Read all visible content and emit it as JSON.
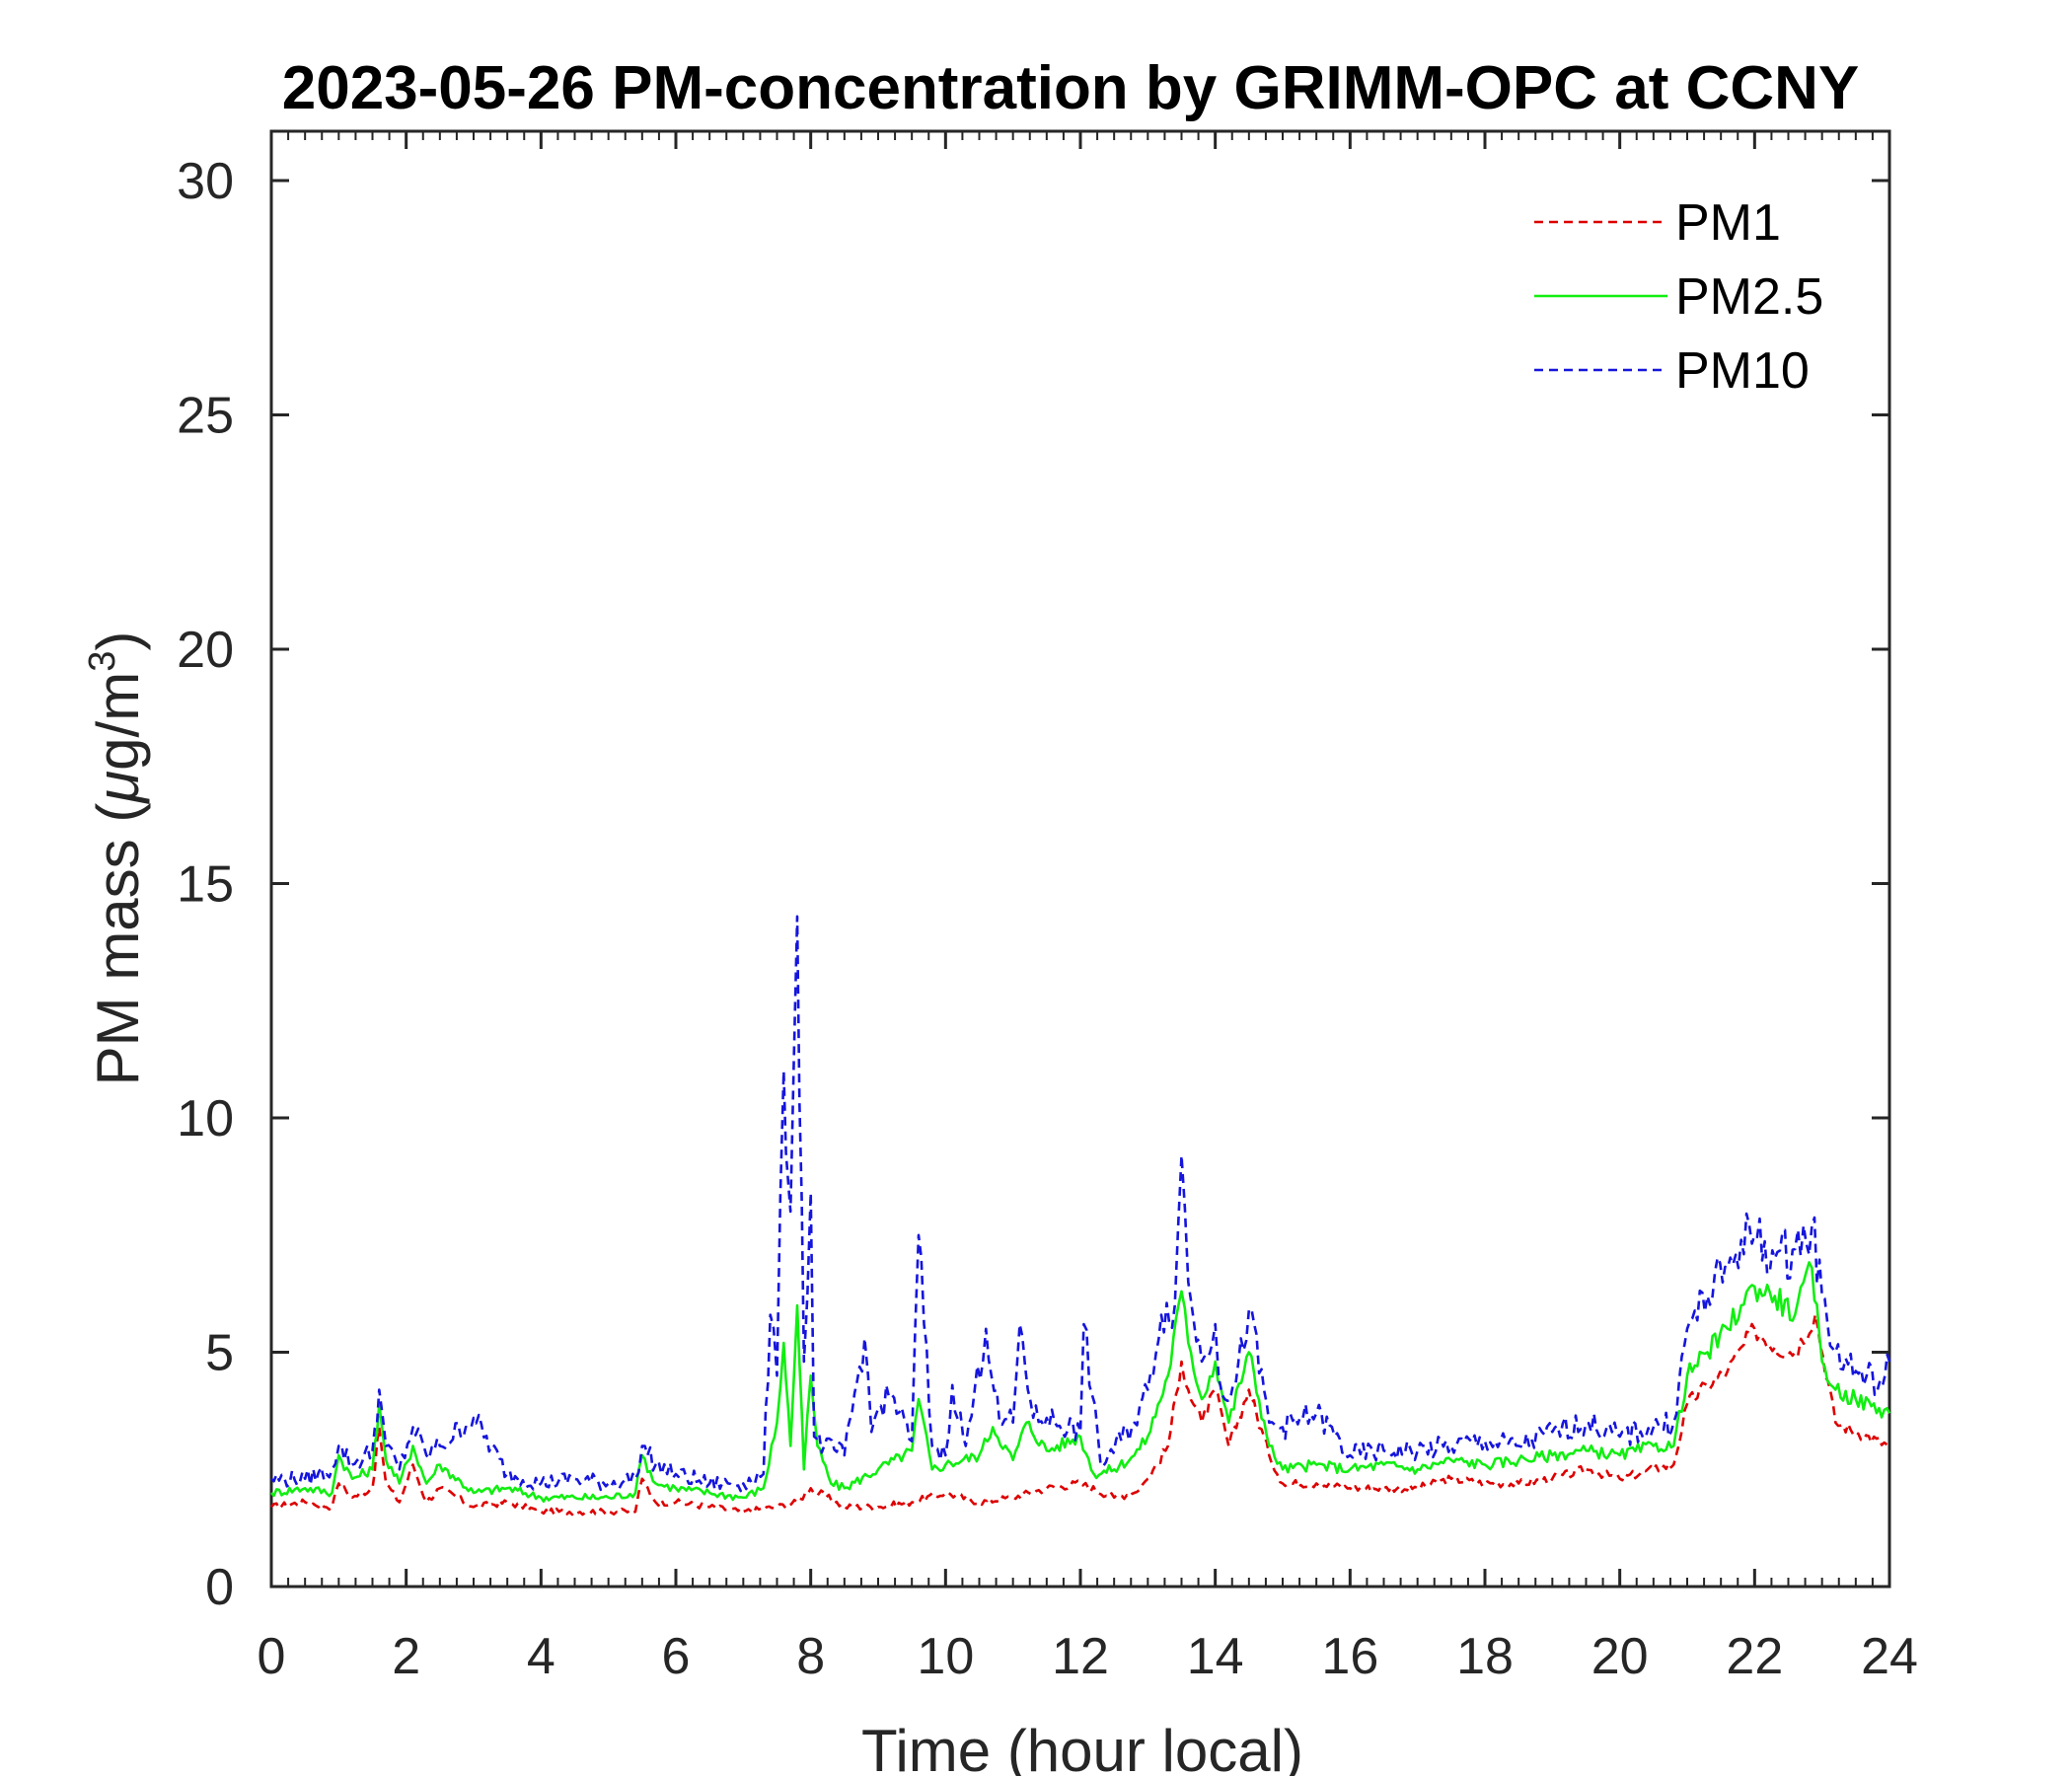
{
  "chart_data": {
    "type": "line",
    "title": "2023-05-26 PM-concentration by GRIMM-OPC at CCNY",
    "xlabel": "Time (hour local)",
    "ylabel": {
      "main": "PM mass (",
      "mu": "μ",
      "unit": "g/m",
      "sup": "3",
      "close": ")"
    },
    "xlim": [
      0,
      24
    ],
    "ylim": [
      0,
      31
    ],
    "xticks": [
      0,
      2,
      4,
      6,
      8,
      10,
      12,
      14,
      16,
      18,
      20,
      22,
      24
    ],
    "yticks": [
      0,
      5,
      10,
      15,
      20,
      25,
      30
    ],
    "grid": false,
    "legend_position": "top-right",
    "series": [
      {
        "name": "PM1",
        "color": "#dd0000",
        "style": "dashed",
        "x": [
          0,
          0.5,
          0.9,
          1.0,
          1.2,
          1.5,
          1.6,
          1.7,
          1.9,
          2.1,
          2.3,
          2.5,
          3.0,
          3.5,
          4.0,
          4.5,
          5.0,
          5.4,
          5.5,
          5.7,
          6.0,
          6.5,
          7.0,
          7.5,
          7.8,
          8.0,
          8.5,
          9.0,
          9.5,
          10.0,
          10.5,
          11.0,
          11.5,
          12.0,
          12.5,
          12.8,
          13.0,
          13.3,
          13.5,
          13.6,
          13.8,
          14.0,
          14.2,
          14.5,
          14.8,
          15.0,
          15.5,
          16.0,
          16.5,
          17.0,
          17.5,
          18.0,
          18.5,
          19.0,
          19.5,
          20.0,
          20.5,
          20.8,
          21.0,
          21.3,
          21.6,
          22.0,
          22.3,
          22.6,
          22.9,
          23.2,
          23.5,
          24.0
        ],
        "values": [
          1.7,
          1.8,
          1.7,
          2.2,
          1.9,
          2.1,
          3.4,
          2.2,
          1.8,
          2.6,
          1.8,
          2.1,
          1.7,
          1.8,
          1.6,
          1.6,
          1.6,
          1.6,
          2.3,
          1.8,
          1.8,
          1.7,
          1.6,
          1.7,
          1.8,
          2.1,
          1.7,
          1.7,
          1.8,
          2.0,
          1.8,
          1.9,
          2.1,
          2.2,
          1.9,
          2.0,
          2.3,
          3.0,
          4.8,
          4.2,
          3.5,
          4.2,
          3.0,
          4.2,
          2.8,
          2.2,
          2.2,
          2.1,
          2.1,
          2.1,
          2.3,
          2.2,
          2.2,
          2.3,
          2.5,
          2.3,
          2.5,
          2.6,
          3.9,
          4.3,
          4.6,
          5.5,
          5.1,
          5.0,
          5.8,
          3.5,
          3.3,
          3.0
        ]
      },
      {
        "name": "PM2.5",
        "color": "#11ee11",
        "style": "solid",
        "x": [
          0,
          0.5,
          0.9,
          1.0,
          1.2,
          1.5,
          1.6,
          1.7,
          1.9,
          2.1,
          2.3,
          2.5,
          3.0,
          3.5,
          4.0,
          4.5,
          5.0,
          5.4,
          5.5,
          5.7,
          6.0,
          6.5,
          7.0,
          7.3,
          7.5,
          7.6,
          7.7,
          7.8,
          7.9,
          8.0,
          8.1,
          8.3,
          8.5,
          9.0,
          9.5,
          9.6,
          9.8,
          10.0,
          10.5,
          10.7,
          11.0,
          11.2,
          11.5,
          12.0,
          12.2,
          12.5,
          12.8,
          13.0,
          13.3,
          13.5,
          13.6,
          13.8,
          14.0,
          14.2,
          14.5,
          14.8,
          15.0,
          15.5,
          16.0,
          16.5,
          17.0,
          17.5,
          18.0,
          18.5,
          19.0,
          19.5,
          20.0,
          20.5,
          20.8,
          21.0,
          21.3,
          21.6,
          21.8,
          22.0,
          22.3,
          22.6,
          22.85,
          23.0,
          23.2,
          23.5,
          24.0
        ],
        "values": [
          2.0,
          2.1,
          2.0,
          2.8,
          2.3,
          2.5,
          3.9,
          2.7,
          2.2,
          3.0,
          2.2,
          2.6,
          2.0,
          2.1,
          1.9,
          1.9,
          1.9,
          2.0,
          2.8,
          2.2,
          2.1,
          2.0,
          1.9,
          2.1,
          3.5,
          5.2,
          3.0,
          6.0,
          2.5,
          4.5,
          3.0,
          2.2,
          2.1,
          2.5,
          2.9,
          4.0,
          2.5,
          2.6,
          2.8,
          3.4,
          2.7,
          3.5,
          2.9,
          3.2,
          2.4,
          2.5,
          2.8,
          3.2,
          4.5,
          6.3,
          5.2,
          4.0,
          4.8,
          3.5,
          5.0,
          3.0,
          2.5,
          2.6,
          2.5,
          2.6,
          2.5,
          2.7,
          2.6,
          2.7,
          2.8,
          2.9,
          2.8,
          3.0,
          3.0,
          4.5,
          5.0,
          5.5,
          6.0,
          6.4,
          6.2,
          5.8,
          6.8,
          4.8,
          4.2,
          4.0,
          3.7
        ]
      },
      {
        "name": "PM10",
        "color": "#1515dd",
        "style": "dashed",
        "x": [
          0,
          0.5,
          0.9,
          1.0,
          1.2,
          1.5,
          1.6,
          1.7,
          1.9,
          2.1,
          2.3,
          2.5,
          3.0,
          3.5,
          4.0,
          4.5,
          5.0,
          5.4,
          5.5,
          5.7,
          6.0,
          6.5,
          7.0,
          7.3,
          7.4,
          7.5,
          7.6,
          7.7,
          7.8,
          7.9,
          8.0,
          8.05,
          8.2,
          8.5,
          8.8,
          8.9,
          9.0,
          9.2,
          9.5,
          9.6,
          9.8,
          10.0,
          10.1,
          10.3,
          10.6,
          10.8,
          11.0,
          11.1,
          11.3,
          11.5,
          12.0,
          12.05,
          12.3,
          12.8,
          13.0,
          13.2,
          13.4,
          13.5,
          13.6,
          13.8,
          14.0,
          14.1,
          14.3,
          14.5,
          14.8,
          15.0,
          15.3,
          15.5,
          16.0,
          16.5,
          17.0,
          17.5,
          18.0,
          18.5,
          19.0,
          19.5,
          20.0,
          20.5,
          20.8,
          21.0,
          21.3,
          21.6,
          21.8,
          22.0,
          22.3,
          22.6,
          22.85,
          23.0,
          23.2,
          23.5,
          23.9,
          24.0
        ],
        "values": [
          2.3,
          2.3,
          2.5,
          3.0,
          2.6,
          2.9,
          4.2,
          3.0,
          2.5,
          3.4,
          2.8,
          3.0,
          3.6,
          2.4,
          2.2,
          2.3,
          2.2,
          2.3,
          3.0,
          2.6,
          2.4,
          2.2,
          2.2,
          2.4,
          5.8,
          4.5,
          11.0,
          8.0,
          14.3,
          4.8,
          8.4,
          3.2,
          3.0,
          2.8,
          5.3,
          3.3,
          3.8,
          4.1,
          3.1,
          7.5,
          3.0,
          2.8,
          4.3,
          3.0,
          5.5,
          3.5,
          3.5,
          5.6,
          3.6,
          3.6,
          3.3,
          5.6,
          2.6,
          3.5,
          4.2,
          5.8,
          6.0,
          9.2,
          6.5,
          4.8,
          5.6,
          4.1,
          4.3,
          5.9,
          3.5,
          3.4,
          3.6,
          3.7,
          2.8,
          2.9,
          2.9,
          3.0,
          3.1,
          3.0,
          3.3,
          3.5,
          3.2,
          3.4,
          3.5,
          5.5,
          6.2,
          6.8,
          7.4,
          7.5,
          7.0,
          7.2,
          7.7,
          6.2,
          5.0,
          4.6,
          4.3,
          4.8
        ]
      }
    ]
  }
}
